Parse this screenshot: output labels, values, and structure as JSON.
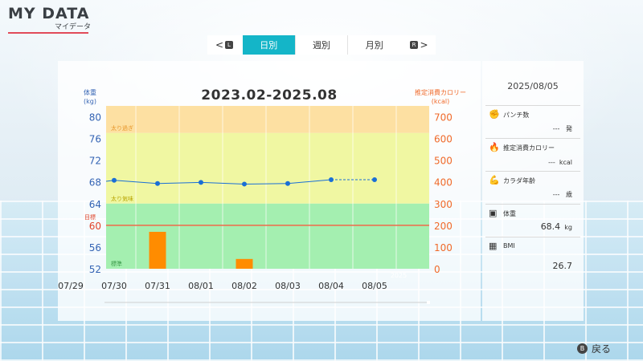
{
  "header": {
    "title": "MY DATA",
    "subtitle": "マイデータ"
  },
  "tabs": {
    "prev_glyph": "<",
    "prev_key": "L",
    "items": [
      {
        "label": "日別",
        "active": true
      },
      {
        "label": "週別",
        "active": false
      },
      {
        "label": "月別",
        "active": false
      }
    ],
    "next_key": "R",
    "next_glyph": ">"
  },
  "chart": {
    "title": "2023.02-2025.08",
    "left_axis_label_line1": "体重",
    "left_axis_label_line2": "(kg)",
    "right_axis_label_line1": "推定消費カロリー",
    "right_axis_label_line2": "(kcal)",
    "zone_labels": {
      "over": "太り過ぎ",
      "slightly_over": "太り気味",
      "target": "目標",
      "standard": "標準"
    },
    "year_label": "2025"
  },
  "chart_data": {
    "type": "bar",
    "categories": [
      "07/29",
      "07/30",
      "07/31",
      "08/01",
      "08/02",
      "08/03",
      "08/04",
      "08/05"
    ],
    "series": [
      {
        "type": "line",
        "axis": "left",
        "values": [
          null,
          68.3,
          67.7,
          67.9,
          67.6,
          67.7,
          68.4,
          68.4
        ]
      },
      {
        "type": "bar",
        "axis": "right",
        "values": [
          0,
          0,
          170,
          0,
          45,
          0,
          0,
          0
        ]
      }
    ],
    "left_axis": {
      "ticks": [
        80,
        76,
        72,
        68,
        64,
        60,
        56,
        52
      ],
      "ylim": [
        52,
        82
      ]
    },
    "right_axis": {
      "ticks": [
        700,
        600,
        500,
        400,
        300,
        200,
        100,
        0
      ],
      "ylim": [
        0,
        750
      ]
    },
    "target_weight": 60,
    "zones": [
      {
        "name": "太り過ぎ",
        "from": 77,
        "to": 82,
        "color": "#fde0a2"
      },
      {
        "name": "太り気味",
        "from": 64,
        "to": 77,
        "color": "#f0f7a2"
      },
      {
        "name": "標準",
        "from": 52,
        "to": 64,
        "color": "#a4efb0"
      }
    ],
    "colors": {
      "line": "#1a6fd6",
      "bar": "#ff8c00",
      "target": "#f06a4a",
      "left_ticks": "#3464b4",
      "right_ticks": "#f06a2a"
    }
  },
  "side": {
    "date": "2025/08/05",
    "punches": {
      "label": "パンチ数",
      "value": "---",
      "unit": "発",
      "icon": "fist-icon"
    },
    "calories": {
      "label": "推定消費カロリー",
      "value": "---",
      "unit": "kcal",
      "icon": "flame-icon"
    },
    "body_age": {
      "label": "カラダ年齢",
      "value": "---",
      "unit": "歳",
      "icon": "muscle-icon"
    },
    "weight": {
      "label": "体重",
      "value": "68.4",
      "unit": "kg",
      "icon": "scale-icon"
    },
    "bmi": {
      "label": "BMI",
      "value": "26.7",
      "icon": "calculator-icon"
    }
  },
  "footer": {
    "back_key": "B",
    "back_label": "戻る"
  }
}
